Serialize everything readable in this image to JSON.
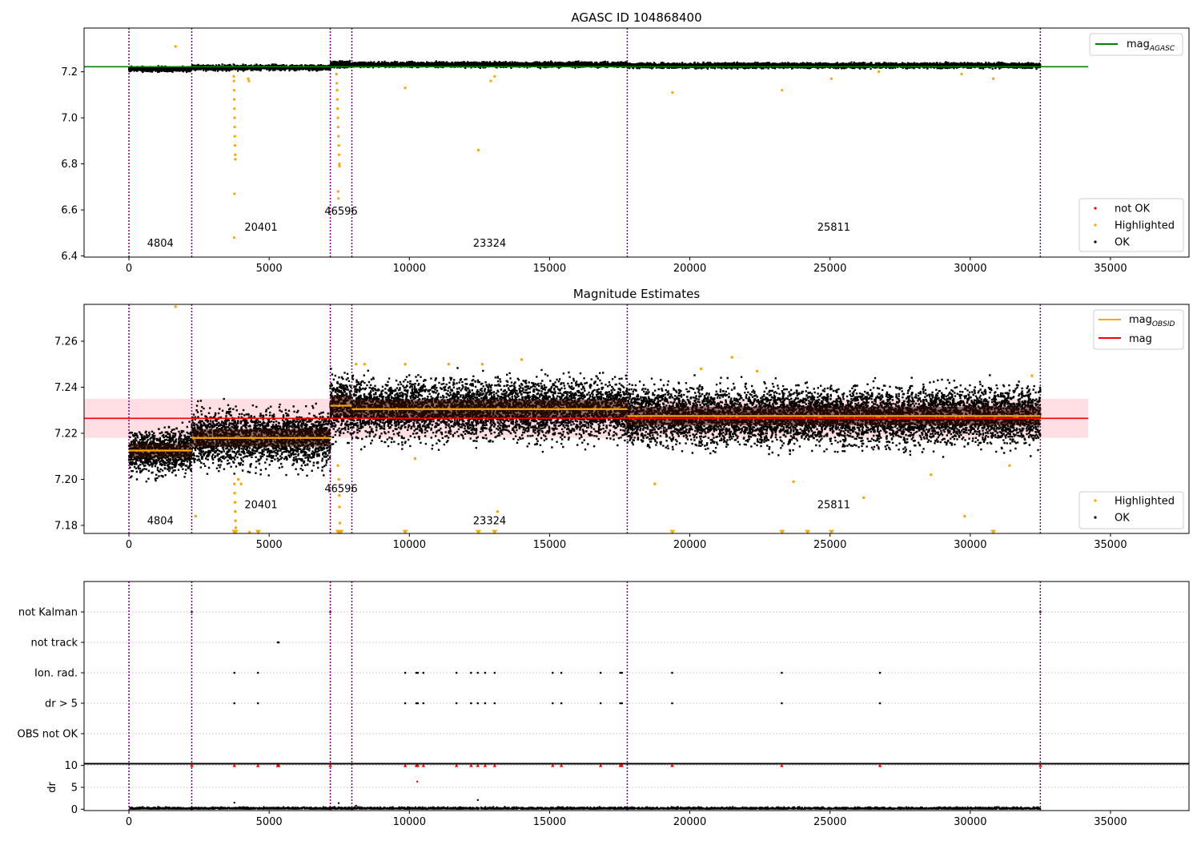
{
  "figure": {
    "title_top": "AGASC ID 104868400",
    "title_mid": "Magnitude Estimates"
  },
  "colors": {
    "ok": "#000000",
    "highlighted": "#ffa500",
    "not_ok": "#ff0000",
    "agasc_line": "#008000",
    "mag_line": "#ff0000",
    "mag_band": "#ffc0c8",
    "obsid_line": "#ffa500",
    "obsid_edge": "#800080"
  },
  "chart_data": [
    {
      "type": "scatter",
      "title": "AGASC ID 104868400",
      "xlabel": "",
      "ylabel": "",
      "xlim": [
        -1600,
        37800
      ],
      "ylim": [
        6.395,
        7.39
      ],
      "xticks": [
        0,
        5000,
        10000,
        15000,
        20000,
        25000,
        30000,
        35000
      ],
      "yticks": [
        6.4,
        6.6,
        6.8,
        7.0,
        7.2
      ],
      "ytick_labels": [
        "6.4",
        "6.6",
        "6.8",
        "7.0",
        "7.2"
      ],
      "obsid_boundaries": [
        0,
        2240,
        7180,
        7950,
        17770,
        32500
      ],
      "obsid_labels": [
        {
          "label": "4804",
          "x": 1120,
          "y": 6.44
        },
        {
          "label": "20401",
          "x": 4710,
          "y": 6.51
        },
        {
          "label": "46596",
          "x": 7565,
          "y": 6.58
        },
        {
          "label": "23324",
          "x": 12860,
          "y": 6.44
        },
        {
          "label": "25811",
          "x": 25135,
          "y": 6.51
        }
      ],
      "mag_agasc": 7.222,
      "series": [
        {
          "name": "OK",
          "segments": [
            {
              "x": [
                0,
                2240
              ],
              "mean": 7.212,
              "spread": 0.005
            },
            {
              "x": [
                2240,
                7180
              ],
              "mean": 7.218,
              "spread": 0.005
            },
            {
              "x": [
                7180,
                7950
              ],
              "mean": 7.232,
              "spread": 0.006
            },
            {
              "x": [
                7950,
                17770
              ],
              "mean": 7.231,
              "spread": 0.005
            },
            {
              "x": [
                17770,
                32500
              ],
              "mean": 7.227,
              "spread": 0.005
            }
          ]
        },
        {
          "name": "Highlighted",
          "points": [
            [
              1660,
              7.31
            ],
            [
              3740,
              7.18
            ],
            [
              3745,
              7.16
            ],
            [
              3750,
              7.12
            ],
            [
              3755,
              7.08
            ],
            [
              3760,
              7.04
            ],
            [
              3765,
              7.0
            ],
            [
              3770,
              6.96
            ],
            [
              3775,
              6.92
            ],
            [
              3780,
              6.88
            ],
            [
              3790,
              6.84
            ],
            [
              3795,
              6.82
            ],
            [
              3760,
              6.67
            ],
            [
              3750,
              6.48
            ],
            [
              4250,
              7.17
            ],
            [
              4280,
              7.16
            ],
            [
              7400,
              7.19
            ],
            [
              7410,
              7.15
            ],
            [
              7420,
              7.12
            ],
            [
              7430,
              7.08
            ],
            [
              7440,
              7.04
            ],
            [
              7450,
              7.0
            ],
            [
              7460,
              6.96
            ],
            [
              7470,
              6.92
            ],
            [
              7480,
              6.88
            ],
            [
              7490,
              6.84
            ],
            [
              7500,
              6.8
            ],
            [
              7510,
              6.79
            ],
            [
              7460,
              6.68
            ],
            [
              7470,
              6.65
            ],
            [
              9850,
              7.13
            ],
            [
              12460,
              6.86
            ],
            [
              12900,
              7.16
            ],
            [
              13040,
              7.18
            ],
            [
              19380,
              7.11
            ],
            [
              23290,
              7.12
            ],
            [
              25050,
              7.17
            ],
            [
              26740,
              7.2
            ],
            [
              29690,
              7.19
            ],
            [
              30820,
              7.17
            ]
          ]
        },
        {
          "name": "not OK",
          "points": []
        }
      ],
      "legend_lines": [
        {
          "name": "magAGASC",
          "label": "mag",
          "sub": "AGASC"
        }
      ],
      "legend_points": [
        {
          "name": "not OK",
          "label": "not OK"
        },
        {
          "name": "Highlighted",
          "label": "Highlighted"
        },
        {
          "name": "OK",
          "label": "OK"
        }
      ]
    },
    {
      "type": "scatter",
      "title": "Magnitude Estimates",
      "xlabel": "",
      "ylabel": "",
      "xlim": [
        -1600,
        37800
      ],
      "ylim": [
        7.1765,
        7.276
      ],
      "xticks": [
        0,
        5000,
        10000,
        15000,
        20000,
        25000,
        30000,
        35000
      ],
      "yticks": [
        7.18,
        7.2,
        7.22,
        7.24,
        7.26
      ],
      "ytick_labels": [
        "7.18",
        "7.20",
        "7.22",
        "7.24",
        "7.26"
      ],
      "obsid_boundaries": [
        0,
        2240,
        7180,
        7950,
        17770,
        32500
      ],
      "obsid_labels": [
        {
          "label": "4804",
          "x": 1120,
          "y": 7.1805
        },
        {
          "label": "20401",
          "x": 4710,
          "y": 7.1875
        },
        {
          "label": "46596",
          "x": 7565,
          "y": 7.1945
        },
        {
          "label": "23324",
          "x": 12860,
          "y": 7.1805
        },
        {
          "label": "25811",
          "x": 25135,
          "y": 7.1875
        }
      ],
      "mag": 7.2265,
      "mag_band": [
        7.218,
        7.235
      ],
      "mag_obsid": [
        {
          "x": [
            0,
            2240
          ],
          "value": 7.2125
        },
        {
          "x": [
            2240,
            7180
          ],
          "value": 7.218
        },
        {
          "x": [
            7180,
            7950
          ],
          "value": 7.232
        },
        {
          "x": [
            7950,
            17770
          ],
          "value": 7.2305
        },
        {
          "x": [
            17770,
            32500
          ],
          "value": 7.2275
        }
      ],
      "series": [
        {
          "name": "OK",
          "segments": [
            {
              "x": [
                0,
                2240
              ],
              "mean": 7.2125,
              "spread": 0.0045
            },
            {
              "x": [
                2240,
                7180
              ],
              "mean": 7.218,
              "spread": 0.0055
            },
            {
              "x": [
                7180,
                7950
              ],
              "mean": 7.232,
              "spread": 0.0065
            },
            {
              "x": [
                7950,
                17770
              ],
              "mean": 7.2305,
              "spread": 0.006
            },
            {
              "x": [
                17770,
                32500
              ],
              "mean": 7.2275,
              "spread": 0.0058
            }
          ]
        },
        {
          "name": "Highlighted",
          "points": [
            [
              1660,
              7.275
            ],
            [
              2380,
              7.184
            ],
            [
              3760,
              7.198
            ],
            [
              3770,
              7.194
            ],
            [
              3780,
              7.19
            ],
            [
              3790,
              7.186
            ],
            [
              3800,
              7.182
            ],
            [
              3810,
              7.179
            ],
            [
              3900,
              7.2
            ],
            [
              4000,
              7.198
            ],
            [
              4300,
              7.177
            ],
            [
              4610,
              7.177
            ],
            [
              7450,
              7.206
            ],
            [
              7480,
              7.2
            ],
            [
              7500,
              7.193
            ],
            [
              7510,
              7.188
            ],
            [
              7520,
              7.181
            ],
            [
              7530,
              7.177
            ],
            [
              7550,
              7.177
            ],
            [
              8100,
              7.25
            ],
            [
              8400,
              7.25
            ],
            [
              9850,
              7.25
            ],
            [
              10200,
              7.209
            ],
            [
              11400,
              7.25
            ],
            [
              12600,
              7.25
            ],
            [
              13140,
              7.186
            ],
            [
              14000,
              7.252
            ],
            [
              18750,
              7.198
            ],
            [
              20400,
              7.248
            ],
            [
              21500,
              7.253
            ],
            [
              22400,
              7.247
            ],
            [
              23700,
              7.199
            ],
            [
              26200,
              7.192
            ],
            [
              28600,
              7.202
            ],
            [
              29800,
              7.184
            ],
            [
              31400,
              7.206
            ],
            [
              32200,
              7.245
            ]
          ]
        },
        {
          "name": "OffscaleLow",
          "points": [
            [
              3760,
              7.177
            ],
            [
              3800,
              7.177
            ],
            [
              4610,
              7.177
            ],
            [
              7460,
              7.177
            ],
            [
              7520,
              7.177
            ],
            [
              7560,
              7.177
            ],
            [
              9850,
              7.177
            ],
            [
              12460,
              7.177
            ],
            [
              13040,
              7.177
            ],
            [
              19380,
              7.177
            ],
            [
              23290,
              7.177
            ],
            [
              24200,
              7.177
            ],
            [
              25050,
              7.177
            ],
            [
              30820,
              7.177
            ]
          ]
        }
      ],
      "legend_lines": [
        {
          "name": "magOBSID",
          "label": "mag",
          "sub": "OBSID"
        },
        {
          "name": "mag",
          "label": "mag",
          "sub": ""
        }
      ],
      "legend_points": [
        {
          "name": "Highlighted",
          "label": "Highlighted"
        },
        {
          "name": "OK",
          "label": "OK"
        }
      ]
    },
    {
      "type": "scatter",
      "title": "",
      "xlabel": "",
      "ylabel": "",
      "xlim": [
        -1600,
        37800
      ],
      "categories": [
        "not Kalman",
        "not track",
        "Ion. rad.",
        "dr > 5",
        "OBS not OK"
      ],
      "flags": {
        "not Kalman": [
          2240,
          7180,
          32500
        ],
        "not track": [
          5310,
          5340
        ],
        "Ion. rad.": [
          3760,
          4600,
          9850,
          10250,
          10300,
          10500,
          11680,
          12200,
          12440,
          12700,
          13040,
          15110,
          15420,
          16820,
          17520,
          17580,
          19370,
          23280,
          26780
        ],
        "dr > 5": [
          3760,
          4600,
          9850,
          10250,
          10300,
          10500,
          11680,
          12200,
          12440,
          12700,
          13040,
          15110,
          15420,
          16820,
          17520,
          17580,
          19370,
          23280,
          26780
        ],
        "OBS not OK": []
      }
    },
    {
      "type": "scatter",
      "title": "",
      "xlabel": "",
      "ylabel": "dr",
      "xlim": [
        -1600,
        37800
      ],
      "ylim": [
        -0.3,
        10.3
      ],
      "yticks": [
        0,
        5,
        10
      ],
      "ytick_labels": [
        "0",
        "5",
        "10"
      ],
      "typical_dr": 0.3,
      "clipped_at_10": [
        2240,
        3760,
        4600,
        5300,
        5340,
        7180,
        9850,
        10250,
        10300,
        10500,
        11680,
        12200,
        12440,
        12700,
        13040,
        15110,
        15420,
        16820,
        17520,
        17580,
        19370,
        23280,
        26780,
        32500
      ],
      "outliers": [
        [
          10280,
          6.3
        ],
        [
          12440,
          2.1
        ],
        [
          3760,
          1.5
        ],
        [
          7480,
          1.4
        ],
        [
          8100,
          0.8
        ]
      ]
    }
  ]
}
